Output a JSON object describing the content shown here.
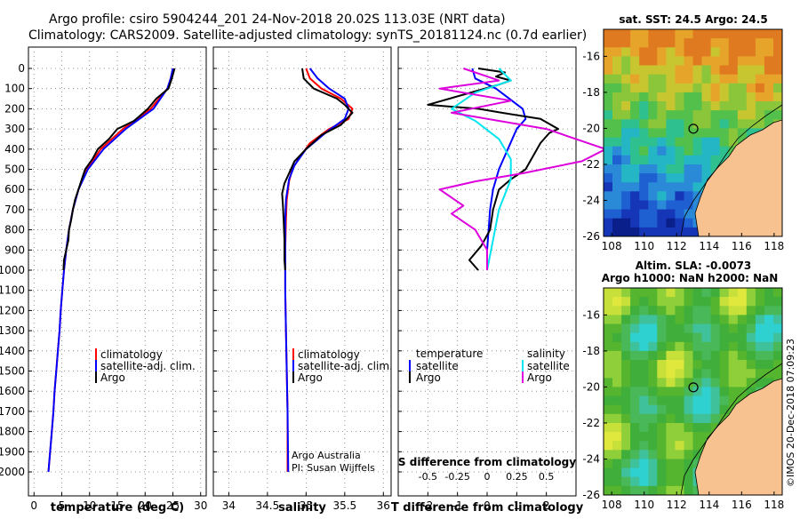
{
  "header": {
    "line1": "Argo profile: csiro 5904244_201 24-Nov-2018 20.02S 113.03E (NRT data)",
    "line2": "Climatology: CARS2009. Satellite-adjusted climatology: synTS_20181124.nc (0.7d earlier)"
  },
  "colors": {
    "climatology": "#ff0000",
    "satellite": "#0000ff",
    "argo": "#000000",
    "sal_satellite": "#00e5ee",
    "sal_argo": "#dd00dd",
    "land": "#f7c28f"
  },
  "chart_data": [
    {
      "type": "line",
      "id": "temperature",
      "xlabel": "temperature (deg C)",
      "xlim": [
        -1,
        31
      ],
      "xticks": [
        0,
        5,
        10,
        15,
        20,
        25,
        30
      ],
      "ylim": [
        2000,
        0
      ],
      "yticks": [
        0,
        100,
        200,
        300,
        400,
        500,
        600,
        700,
        800,
        900,
        1000,
        1100,
        1200,
        1300,
        1400,
        1500,
        1600,
        1700,
        1800,
        1900,
        2000
      ],
      "legend": [
        "climatology",
        "satellite-adj. clim.",
        "Argo"
      ],
      "series": [
        {
          "name": "climatology",
          "color": "#ff0000",
          "points": [
            [
              25,
              0
            ],
            [
              24.6,
              50
            ],
            [
              24,
              100
            ],
            [
              21,
              200
            ],
            [
              16,
              300
            ],
            [
              12,
              400
            ],
            [
              9.5,
              500
            ],
            [
              8,
              600
            ],
            [
              7,
              700
            ],
            [
              6.3,
              800
            ],
            [
              5.8,
              900
            ],
            [
              5.4,
              1000
            ],
            [
              5.1,
              1100
            ],
            [
              4.8,
              1200
            ],
            [
              4.6,
              1300
            ],
            [
              4.3,
              1400
            ],
            [
              4.0,
              1500
            ],
            [
              3.7,
              1600
            ],
            [
              3.5,
              1700
            ],
            [
              3.2,
              1800
            ],
            [
              2.9,
              1900
            ],
            [
              2.6,
              2000
            ]
          ]
        },
        {
          "name": "satellite-adj. clim.",
          "color": "#0000ff",
          "points": [
            [
              25,
              0
            ],
            [
              24.6,
              50
            ],
            [
              24,
              100
            ],
            [
              21.5,
              200
            ],
            [
              16.5,
              300
            ],
            [
              12.5,
              400
            ],
            [
              9.7,
              500
            ],
            [
              8,
              600
            ],
            [
              7,
              700
            ],
            [
              6.3,
              800
            ],
            [
              5.8,
              900
            ],
            [
              5.4,
              1000
            ],
            [
              5.1,
              1100
            ],
            [
              4.8,
              1200
            ],
            [
              4.6,
              1300
            ],
            [
              4.3,
              1400
            ],
            [
              4.0,
              1500
            ],
            [
              3.7,
              1600
            ],
            [
              3.5,
              1700
            ],
            [
              3.2,
              1800
            ],
            [
              2.9,
              1900
            ],
            [
              2.6,
              2000
            ]
          ]
        },
        {
          "name": "Argo",
          "color": "#000000",
          "points": [
            [
              25.3,
              0
            ],
            [
              24.8,
              50
            ],
            [
              24.2,
              100
            ],
            [
              22,
              150
            ],
            [
              20.5,
              200
            ],
            [
              18,
              260
            ],
            [
              15,
              300
            ],
            [
              13.5,
              350
            ],
            [
              11.5,
              400
            ],
            [
              10.5,
              450
            ],
            [
              9.2,
              500
            ],
            [
              8.6,
              550
            ],
            [
              8,
              600
            ],
            [
              7.4,
              650
            ],
            [
              7,
              700
            ],
            [
              6.7,
              750
            ],
            [
              6.3,
              800
            ],
            [
              6.2,
              850
            ],
            [
              5.8,
              900
            ],
            [
              5.4,
              950
            ],
            [
              5.3,
              1000
            ]
          ]
        }
      ]
    },
    {
      "type": "line",
      "id": "salinity",
      "xlabel": "salinity",
      "xlim": [
        33.8,
        36.1
      ],
      "xticks": [
        34,
        34.5,
        35,
        35.5,
        36
      ],
      "ylim": [
        2000,
        0
      ],
      "legend": [
        "climatology",
        "satellite-adj. clim.",
        "Argo"
      ],
      "credit": [
        "Argo Australia",
        "PI: Susan Wijffels"
      ],
      "series": [
        {
          "name": "climatology",
          "color": "#ff0000",
          "points": [
            [
              35,
              0
            ],
            [
              35.05,
              50
            ],
            [
              35.2,
              100
            ],
            [
              35.45,
              150
            ],
            [
              35.6,
              200
            ],
            [
              35.55,
              250
            ],
            [
              35.3,
              300
            ],
            [
              35.05,
              370
            ],
            [
              34.9,
              450
            ],
            [
              34.82,
              500
            ],
            [
              34.78,
              560
            ],
            [
              34.75,
              650
            ],
            [
              34.74,
              750
            ],
            [
              34.73,
              900
            ],
            [
              34.73,
              1100
            ],
            [
              34.74,
              1300
            ],
            [
              34.75,
              1500
            ],
            [
              34.76,
              1700
            ],
            [
              34.76,
              2000
            ]
          ]
        },
        {
          "name": "satellite-adj. clim.",
          "color": "#0000ff",
          "points": [
            [
              35.05,
              0
            ],
            [
              35.15,
              50
            ],
            [
              35.3,
              100
            ],
            [
              35.5,
              150
            ],
            [
              35.55,
              200
            ],
            [
              35.5,
              250
            ],
            [
              35.25,
              320
            ],
            [
              35.0,
              400
            ],
            [
              34.85,
              480
            ],
            [
              34.78,
              550
            ],
            [
              34.74,
              650
            ],
            [
              34.73,
              750
            ],
            [
              34.73,
              900
            ],
            [
              34.73,
              1100
            ],
            [
              34.74,
              1300
            ],
            [
              34.75,
              1500
            ],
            [
              34.76,
              1700
            ],
            [
              34.77,
              2000
            ]
          ]
        },
        {
          "name": "Argo",
          "color": "#000000",
          "points": [
            [
              34.95,
              0
            ],
            [
              34.97,
              50
            ],
            [
              35.1,
              100
            ],
            [
              35.4,
              150
            ],
            [
              35.5,
              180
            ],
            [
              35.6,
              220
            ],
            [
              35.45,
              280
            ],
            [
              35.2,
              330
            ],
            [
              35.0,
              400
            ],
            [
              34.85,
              460
            ],
            [
              34.78,
              520
            ],
            [
              34.72,
              570
            ],
            [
              34.69,
              620
            ],
            [
              34.7,
              680
            ],
            [
              34.71,
              750
            ],
            [
              34.72,
              850
            ],
            [
              34.72,
              950
            ],
            [
              34.73,
              1000
            ]
          ]
        }
      ]
    },
    {
      "type": "line",
      "id": "difference",
      "xlabel": "T difference from climatology",
      "xlabel2": "S difference from climatology",
      "xlim": [
        -3,
        3
      ],
      "xticks": [
        -2,
        -1,
        0,
        1,
        2
      ],
      "xticks2": [
        "-0.5",
        "-0.25",
        "0",
        "0.25",
        "0.5"
      ],
      "ylim": [
        2000,
        0
      ],
      "legend_t_title": "temperature",
      "legend_s_title": "salinity",
      "legend_t": [
        "satellite",
        "Argo"
      ],
      "legend_s": [
        "satellite",
        "Argo"
      ],
      "series": [
        {
          "name": "satellite",
          "kind": "T",
          "color": "#0000ff",
          "points": [
            [
              -0.5,
              0
            ],
            [
              -0.4,
              50
            ],
            [
              0.3,
              100
            ],
            [
              1.2,
              200
            ],
            [
              1.3,
              250
            ],
            [
              1.0,
              300
            ],
            [
              0.7,
              400
            ],
            [
              0.4,
              500
            ],
            [
              0.2,
              600
            ],
            [
              0.1,
              700
            ],
            [
              0.05,
              800
            ],
            [
              0.0,
              900
            ],
            [
              0.0,
              1000
            ]
          ]
        },
        {
          "name": "Argo",
          "kind": "T",
          "color": "#000000",
          "points": [
            [
              -0.3,
              0
            ],
            [
              0.6,
              20
            ],
            [
              0.3,
              40
            ],
            [
              0.8,
              60
            ],
            [
              0.4,
              80
            ],
            [
              -2,
              180
            ],
            [
              -0.3,
              200
            ],
            [
              0.5,
              220
            ],
            [
              1.8,
              250
            ],
            [
              2.4,
              300
            ],
            [
              2.1,
              320
            ],
            [
              1.8,
              370
            ],
            [
              1.3,
              500
            ],
            [
              0.8,
              550
            ],
            [
              0.4,
              600
            ],
            [
              0.2,
              700
            ],
            [
              0.1,
              800
            ],
            [
              -0.2,
              880
            ],
            [
              -0.6,
              950
            ],
            [
              -0.3,
              1000
            ]
          ]
        },
        {
          "name": "satellite",
          "kind": "S",
          "color": "#00e5ee",
          "points": [
            [
              0.1,
              0
            ],
            [
              0.2,
              60
            ],
            [
              -0.1,
              120
            ],
            [
              -0.3,
              200
            ],
            [
              -0.1,
              260
            ],
            [
              0.1,
              350
            ],
            [
              0.2,
              450
            ],
            [
              0.2,
              550
            ],
            [
              0.1,
              700
            ],
            [
              0.05,
              850
            ],
            [
              0.0,
              1000
            ]
          ]
        },
        {
          "name": "Argo",
          "kind": "S",
          "color": "#dd00dd",
          "points": [
            [
              -0.2,
              0
            ],
            [
              0.1,
              60
            ],
            [
              -0.4,
              100
            ],
            [
              0.2,
              160
            ],
            [
              -0.3,
              220
            ],
            [
              0.5,
              300
            ],
            [
              1.0,
              400
            ],
            [
              0.8,
              460
            ],
            [
              0.3,
              520
            ],
            [
              -0.1,
              560
            ],
            [
              -0.4,
              600
            ],
            [
              -0.2,
              680
            ],
            [
              -0.3,
              720
            ],
            [
              -0.1,
              800
            ],
            [
              0.0,
              900
            ],
            [
              0.0,
              1000
            ]
          ]
        }
      ]
    },
    {
      "type": "heatmap",
      "id": "sst_map",
      "title": "sat. SST: 24.5  Argo: 24.5",
      "xlim": [
        107.5,
        118.5
      ],
      "ylim": [
        -26,
        -14.5
      ],
      "xticks": [
        108,
        110,
        112,
        114,
        116,
        118
      ],
      "yticks": [
        -16,
        -18,
        -20,
        -22,
        -24,
        -26
      ],
      "marker": [
        113.03,
        -20.02
      ]
    },
    {
      "type": "heatmap",
      "id": "sla_map",
      "title": "Altim. SLA: -0.0073",
      "subtitle": "Argo h1000: NaN h2000: NaN",
      "xlim": [
        107.5,
        118.5
      ],
      "ylim": [
        -26,
        -14.5
      ],
      "xticks": [
        108,
        110,
        112,
        114,
        116,
        118
      ],
      "yticks": [
        -16,
        -18,
        -20,
        -22,
        -24,
        -26
      ],
      "marker": [
        113.03,
        -20.02
      ]
    }
  ],
  "footer": {
    "stamp": "©IMOS 20-Dec-2018 07:09:23"
  }
}
